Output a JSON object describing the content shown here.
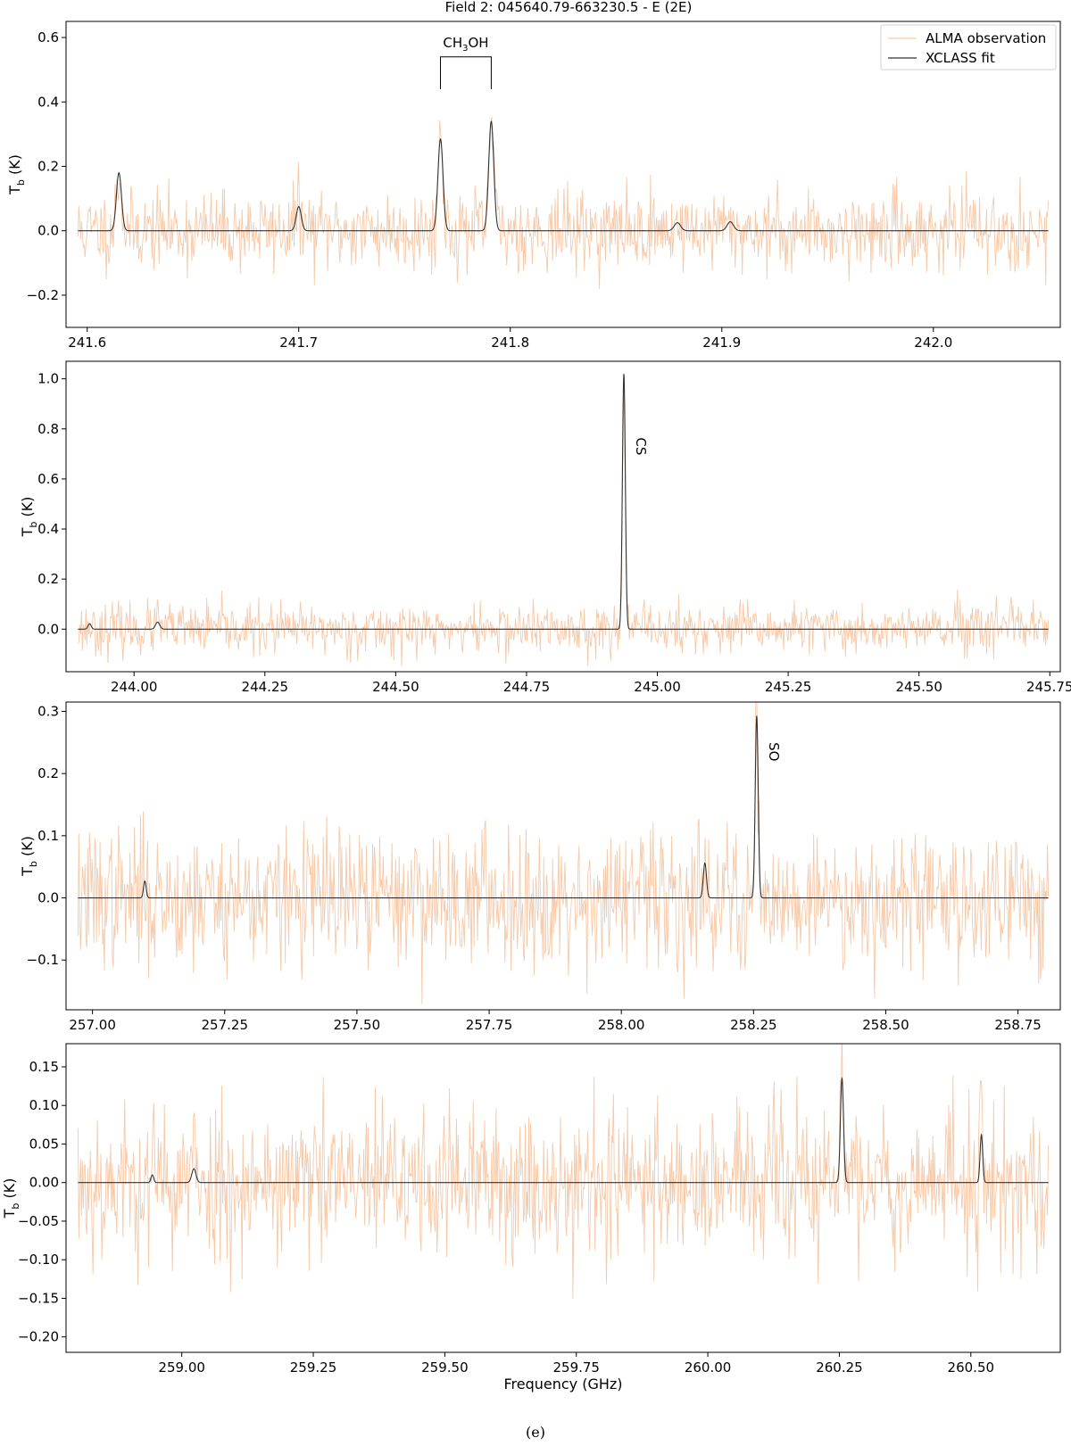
{
  "figure": {
    "title": "Field 2: 045640.79-663230.5 - E (2E)",
    "caption": "(e)",
    "legend": {
      "position": "top-right",
      "entries": [
        {
          "label": "ALMA observation",
          "color": "#f6c9a8"
        },
        {
          "label": "XCLASS fit",
          "color": "#333333"
        }
      ]
    },
    "colors": {
      "observation": "#f6c9a8",
      "fit": "#333333"
    }
  },
  "chart_data": [
    {
      "type": "line",
      "xlabel": "",
      "ylabel_main": "T",
      "ylabel_sub": "b",
      "ylabel_unit": " (K)",
      "xlim": [
        241.59,
        242.06
      ],
      "ylim": [
        -0.3,
        0.65
      ],
      "xticks": [
        241.6,
        241.7,
        241.8,
        241.9,
        242.0
      ],
      "xtick_labels": [
        "241.6",
        "241.7",
        "241.8",
        "241.9",
        "242.0"
      ],
      "yticks": [
        -0.2,
        0.0,
        0.2,
        0.4,
        0.6
      ],
      "ytick_labels": [
        "−0.2",
        "0.0",
        "0.2",
        "0.4",
        "0.6"
      ],
      "noise_sigma": 0.06,
      "noise_seed": 11,
      "series": [
        {
          "name": "ALMA observation",
          "role": "observation"
        },
        {
          "name": "XCLASS fit",
          "role": "fit",
          "baseline": 0.0,
          "peaks": [
            {
              "x": 241.615,
              "amp": 0.18,
              "width": 0.0012
            },
            {
              "x": 241.7,
              "amp": 0.075,
              "width": 0.0012
            },
            {
              "x": 241.767,
              "amp": 0.285,
              "width": 0.0012
            },
            {
              "x": 241.791,
              "amp": 0.34,
              "width": 0.0012
            },
            {
              "x": 241.879,
              "amp": 0.025,
              "width": 0.0015
            },
            {
              "x": 241.904,
              "amp": 0.028,
              "width": 0.0015
            }
          ]
        }
      ],
      "annotations": [
        {
          "text_main": "CH",
          "text_sub": "3",
          "text_rest": "OH",
          "kind": "bracket",
          "x_start": 241.767,
          "x_end": 241.791,
          "y_bottom": 0.44,
          "y_top": 0.54,
          "text_y": 0.57
        }
      ]
    },
    {
      "type": "line",
      "xlabel": "",
      "ylabel_main": "T",
      "ylabel_sub": "b",
      "ylabel_unit": " (K)",
      "xlim": [
        243.87,
        245.77
      ],
      "ylim": [
        -0.17,
        1.07
      ],
      "xticks": [
        244.0,
        244.25,
        244.5,
        244.75,
        245.0,
        245.25,
        245.5,
        245.75
      ],
      "xtick_labels": [
        "244.00",
        "244.25",
        "244.50",
        "244.75",
        "245.00",
        "245.25",
        "245.50",
        "245.75"
      ],
      "yticks": [
        0.0,
        0.2,
        0.4,
        0.6,
        0.8,
        1.0
      ],
      "ytick_labels": [
        "0.0",
        "0.2",
        "0.4",
        "0.6",
        "0.8",
        "1.0"
      ],
      "noise_sigma": 0.05,
      "noise_seed": 23,
      "series": [
        {
          "name": "ALMA observation",
          "role": "observation"
        },
        {
          "name": "XCLASS fit",
          "role": "fit",
          "baseline": 0.0,
          "peaks": [
            {
              "x": 243.915,
              "amp": 0.022,
              "width": 0.003
            },
            {
              "x": 244.045,
              "amp": 0.028,
              "width": 0.004
            },
            {
              "x": 244.936,
              "amp": 1.02,
              "width": 0.0028
            }
          ]
        }
      ],
      "annotations": [
        {
          "text_main": "CS",
          "kind": "vertical",
          "x": 244.936,
          "y": 0.73
        }
      ]
    },
    {
      "type": "line",
      "xlabel": "",
      "ylabel_main": "T",
      "ylabel_sub": "b",
      "ylabel_unit": " (K)",
      "xlim": [
        256.95,
        258.83
      ],
      "ylim": [
        -0.18,
        0.315
      ],
      "xticks": [
        257.0,
        257.25,
        257.5,
        257.75,
        258.0,
        258.25,
        258.5,
        258.75
      ],
      "xtick_labels": [
        "257.00",
        "257.25",
        "257.50",
        "257.75",
        "258.00",
        "258.25",
        "258.50",
        "258.75"
      ],
      "yticks": [
        -0.1,
        0.0,
        0.1,
        0.2,
        0.3
      ],
      "ytick_labels": [
        "−0.1",
        "0.0",
        "0.1",
        "0.2",
        "0.3"
      ],
      "noise_sigma": 0.055,
      "noise_seed": 37,
      "series": [
        {
          "name": "ALMA observation",
          "role": "observation"
        },
        {
          "name": "XCLASS fit",
          "role": "fit",
          "baseline": 0.0,
          "peaks": [
            {
              "x": 257.099,
              "amp": 0.027,
              "width": 0.0025
            },
            {
              "x": 258.158,
              "amp": 0.056,
              "width": 0.003
            },
            {
              "x": 258.256,
              "amp": 0.293,
              "width": 0.0028
            }
          ]
        }
      ],
      "annotations": [
        {
          "text_main": "SO",
          "kind": "vertical",
          "x": 258.256,
          "y": 0.235
        }
      ]
    },
    {
      "type": "line",
      "xlabel": "Frequency (GHz)",
      "ylabel_main": "T",
      "ylabel_sub": "b",
      "ylabel_unit": " (K)",
      "xlim": [
        258.78,
        260.67
      ],
      "ylim": [
        -0.22,
        0.18
      ],
      "xticks": [
        259.0,
        259.25,
        259.5,
        259.75,
        260.0,
        260.25,
        260.5
      ],
      "xtick_labels": [
        "259.00",
        "259.25",
        "259.50",
        "259.75",
        "260.00",
        "260.25",
        "260.50"
      ],
      "yticks": [
        -0.2,
        -0.15,
        -0.1,
        -0.05,
        0.0,
        0.05,
        0.1,
        0.15
      ],
      "ytick_labels": [
        "−0.20",
        "−0.15",
        "−0.10",
        "−0.05",
        "0.00",
        "0.05",
        "0.10",
        "0.15"
      ],
      "noise_sigma": 0.05,
      "noise_seed": 53,
      "series": [
        {
          "name": "ALMA observation",
          "role": "observation"
        },
        {
          "name": "XCLASS fit",
          "role": "fit",
          "baseline": 0.0,
          "peaks": [
            {
              "x": 258.944,
              "amp": 0.01,
              "width": 0.0025
            },
            {
              "x": 259.023,
              "amp": 0.018,
              "width": 0.004
            },
            {
              "x": 260.255,
              "amp": 0.135,
              "width": 0.003
            },
            {
              "x": 260.52,
              "amp": 0.062,
              "width": 0.0025
            }
          ]
        }
      ],
      "annotations": []
    }
  ]
}
